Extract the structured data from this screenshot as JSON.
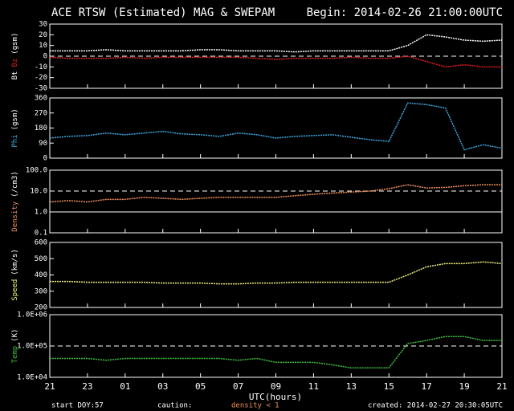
{
  "title": "ACE RTSW (Estimated) MAG & SWEPAM",
  "begin": "Begin: 2014-02-26 21:00:00UTC",
  "x": [
    0,
    1,
    2,
    3,
    4,
    5,
    6,
    7,
    8,
    9,
    10,
    11,
    12,
    13,
    14,
    15,
    16,
    17,
    18,
    19,
    20,
    21,
    22,
    23,
    24
  ],
  "xlim": [
    0,
    24
  ],
  "xticks": [
    {
      "value": 0,
      "label": "21"
    },
    {
      "value": 2,
      "label": "23"
    },
    {
      "value": 4,
      "label": "01"
    },
    {
      "value": 6,
      "label": "03"
    },
    {
      "value": 8,
      "label": "05"
    },
    {
      "value": 10,
      "label": "07"
    },
    {
      "value": 12,
      "label": "09"
    },
    {
      "value": 14,
      "label": "11"
    },
    {
      "value": 16,
      "label": "13"
    },
    {
      "value": 18,
      "label": "15"
    },
    {
      "value": 20,
      "label": "17"
    },
    {
      "value": 22,
      "label": "19"
    },
    {
      "value": 24,
      "label": "21"
    }
  ],
  "xlabel": "UTC(hours)",
  "footer": {
    "doy_label": "start DOY:",
    "doy": 57,
    "caution": "caution:",
    "density_note": "density < 1",
    "created": "created: 2014-02-27 20:30:05UTC"
  },
  "chart_data": [
    {
      "type": "line",
      "ylabel": "(gsm)",
      "ylim": [
        -30,
        30
      ],
      "yticks": [
        30,
        20,
        10,
        0,
        -10,
        -20,
        -30
      ],
      "ref_lines": [
        0
      ],
      "series": [
        {
          "name": "Bt",
          "color": "#ffffff",
          "values": [
            5,
            5,
            5,
            6,
            5,
            5,
            5,
            5,
            6,
            6,
            5,
            5,
            5,
            4,
            5,
            5,
            5,
            5,
            5,
            10,
            20,
            18,
            15,
            14,
            15
          ]
        },
        {
          "name": "Bz",
          "color": "#e02020",
          "values": [
            -1,
            -2,
            -2,
            -2,
            -1,
            -2,
            -1,
            -1,
            -1,
            -1,
            -1,
            -2,
            -3,
            -2,
            -2,
            -2,
            -1,
            -2,
            -2,
            0,
            -5,
            -10,
            -8,
            -10,
            -10
          ]
        }
      ]
    },
    {
      "type": "line",
      "ylabel": "(gsm)",
      "ylim": [
        0,
        360
      ],
      "yticks": [
        0,
        90,
        180,
        270,
        360
      ],
      "series": [
        {
          "name": "Phi",
          "color": "#40a8e0",
          "values": [
            120,
            130,
            135,
            150,
            140,
            150,
            160,
            145,
            140,
            130,
            150,
            140,
            120,
            130,
            135,
            140,
            125,
            110,
            100,
            330,
            320,
            300,
            50,
            80,
            60
          ]
        }
      ]
    },
    {
      "type": "line",
      "ylabel": "(/cm3)",
      "log": true,
      "ylim": [
        0.1,
        100
      ],
      "yticks": [
        {
          "value": 100,
          "label": "100.0"
        },
        {
          "value": 10,
          "label": "10.0"
        },
        {
          "value": 1,
          "label": "1.0"
        },
        {
          "value": 0.1,
          "label": "0.1"
        }
      ],
      "ref_lines": [
        10,
        1
      ],
      "series": [
        {
          "name": "Density",
          "color": "#f0905a",
          "values": [
            3,
            3.5,
            3,
            4,
            4,
            5,
            4.5,
            4,
            4.5,
            5,
            5,
            5,
            5,
            6,
            7,
            8,
            9,
            10,
            13,
            20,
            14,
            15,
            18,
            20,
            20
          ]
        }
      ]
    },
    {
      "type": "line",
      "ylabel": "(km/s)",
      "ylim": [
        200,
        600
      ],
      "yticks": [
        200,
        300,
        400,
        500,
        600
      ],
      "series": [
        {
          "name": "Speed",
          "color": "#f0f080",
          "values": [
            360,
            360,
            355,
            355,
            355,
            355,
            350,
            350,
            350,
            345,
            345,
            350,
            350,
            355,
            355,
            355,
            355,
            355,
            355,
            400,
            450,
            470,
            470,
            480,
            470
          ]
        }
      ]
    },
    {
      "type": "line",
      "ylabel": "(K)",
      "log": true,
      "ylim": [
        10000,
        1000000
      ],
      "yticks": [
        {
          "value": 1000000,
          "label": "1.0E+06"
        },
        {
          "value": 100000,
          "label": "1.0E+05"
        },
        {
          "value": 10000,
          "label": "1.0E+04"
        }
      ],
      "ref_lines": [
        100000
      ],
      "series": [
        {
          "name": "Temp",
          "color": "#40c040",
          "values": [
            40000,
            40000,
            40000,
            35000,
            40000,
            40000,
            40000,
            40000,
            40000,
            40000,
            35000,
            40000,
            30000,
            30000,
            30000,
            25000,
            20000,
            20000,
            20000,
            120000,
            150000,
            200000,
            200000,
            150000,
            150000
          ]
        }
      ]
    }
  ]
}
